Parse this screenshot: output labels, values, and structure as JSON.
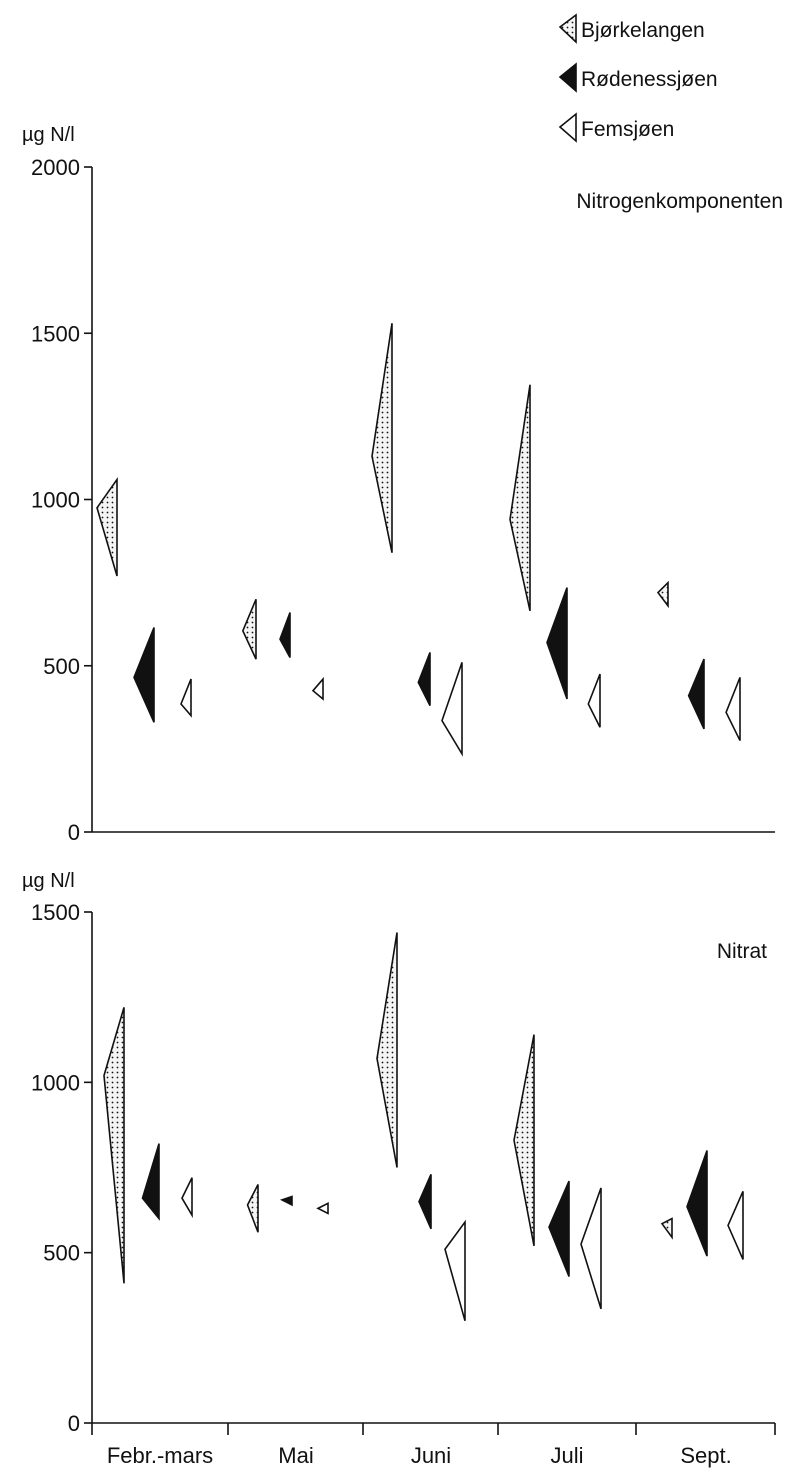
{
  "legend": [
    {
      "label": "Bjørkelangen",
      "style": "dotted"
    },
    {
      "label": "Rødenessjøen",
      "style": "filled"
    },
    {
      "label": "Femsjøen",
      "style": "open"
    }
  ],
  "colors": {
    "ink": "#111111",
    "dot_fill": "#f4f4f4",
    "paper": "#ffffff"
  },
  "chart_data": [
    {
      "type": "range-markers",
      "title": "Nitrogenkomponenten",
      "ylabel": "µg N/l",
      "ylim": [
        0,
        2000
      ],
      "yticks": [
        0,
        500,
        1000,
        1500,
        2000
      ],
      "categories": [
        "Febr.-mars",
        "Mai",
        "Juni",
        "Juli",
        "Sept."
      ],
      "series": [
        {
          "name": "Bjørkelangen",
          "style": "dotted",
          "values": [
            {
              "min": 770,
              "max": 1060,
              "mean": 975
            },
            {
              "min": 520,
              "max": 700,
              "mean": 605
            },
            {
              "min": 840,
              "max": 1530,
              "mean": 1130
            },
            {
              "min": 665,
              "max": 1345,
              "mean": 940
            },
            {
              "min": 680,
              "max": 750,
              "mean": 720
            }
          ]
        },
        {
          "name": "Rødenessjøen",
          "style": "filled",
          "values": [
            {
              "min": 330,
              "max": 615,
              "mean": 465
            },
            {
              "min": 525,
              "max": 660,
              "mean": 580
            },
            {
              "min": 380,
              "max": 540,
              "mean": 450
            },
            {
              "min": 400,
              "max": 735,
              "mean": 570
            },
            {
              "min": 310,
              "max": 520,
              "mean": 410
            }
          ]
        },
        {
          "name": "Femsjøen",
          "style": "open",
          "values": [
            {
              "min": 350,
              "max": 460,
              "mean": 385
            },
            {
              "min": 400,
              "max": 460,
              "mean": 425
            },
            {
              "min": 235,
              "max": 510,
              "mean": 335
            },
            {
              "min": 315,
              "max": 475,
              "mean": 385
            },
            {
              "min": 275,
              "max": 465,
              "mean": 360
            }
          ]
        }
      ]
    },
    {
      "type": "range-markers",
      "title": "Nitrat",
      "ylabel": "µg N/l",
      "ylim": [
        0,
        1500
      ],
      "yticks": [
        0,
        500,
        1000,
        1500
      ],
      "categories": [
        "Febr.-mars",
        "Mai",
        "Juni",
        "Juli",
        "Sept."
      ],
      "series": [
        {
          "name": "Bjørkelangen",
          "style": "dotted",
          "values": [
            {
              "min": 410,
              "max": 1220,
              "mean": 1020
            },
            {
              "min": 560,
              "max": 700,
              "mean": 640
            },
            {
              "min": 750,
              "max": 1440,
              "mean": 1070
            },
            {
              "min": 520,
              "max": 1140,
              "mean": 830
            },
            {
              "min": 545,
              "max": 600,
              "mean": 585
            }
          ]
        },
        {
          "name": "Rødenessjøen",
          "style": "filled",
          "values": [
            {
              "min": 600,
              "max": 820,
              "mean": 660
            },
            {
              "min": 640,
              "max": 665,
              "mean": 655
            },
            {
              "min": 570,
              "max": 730,
              "mean": 650
            },
            {
              "min": 430,
              "max": 710,
              "mean": 575
            },
            {
              "min": 490,
              "max": 800,
              "mean": 635
            }
          ]
        },
        {
          "name": "Femsjøen",
          "style": "open",
          "values": [
            {
              "min": 610,
              "max": 720,
              "mean": 660
            },
            {
              "min": 615,
              "max": 645,
              "mean": 630
            },
            {
              "min": 300,
              "max": 590,
              "mean": 510
            },
            {
              "min": 335,
              "max": 690,
              "mean": 525
            },
            {
              "min": 480,
              "max": 680,
              "mean": 580
            }
          ]
        }
      ]
    }
  ]
}
